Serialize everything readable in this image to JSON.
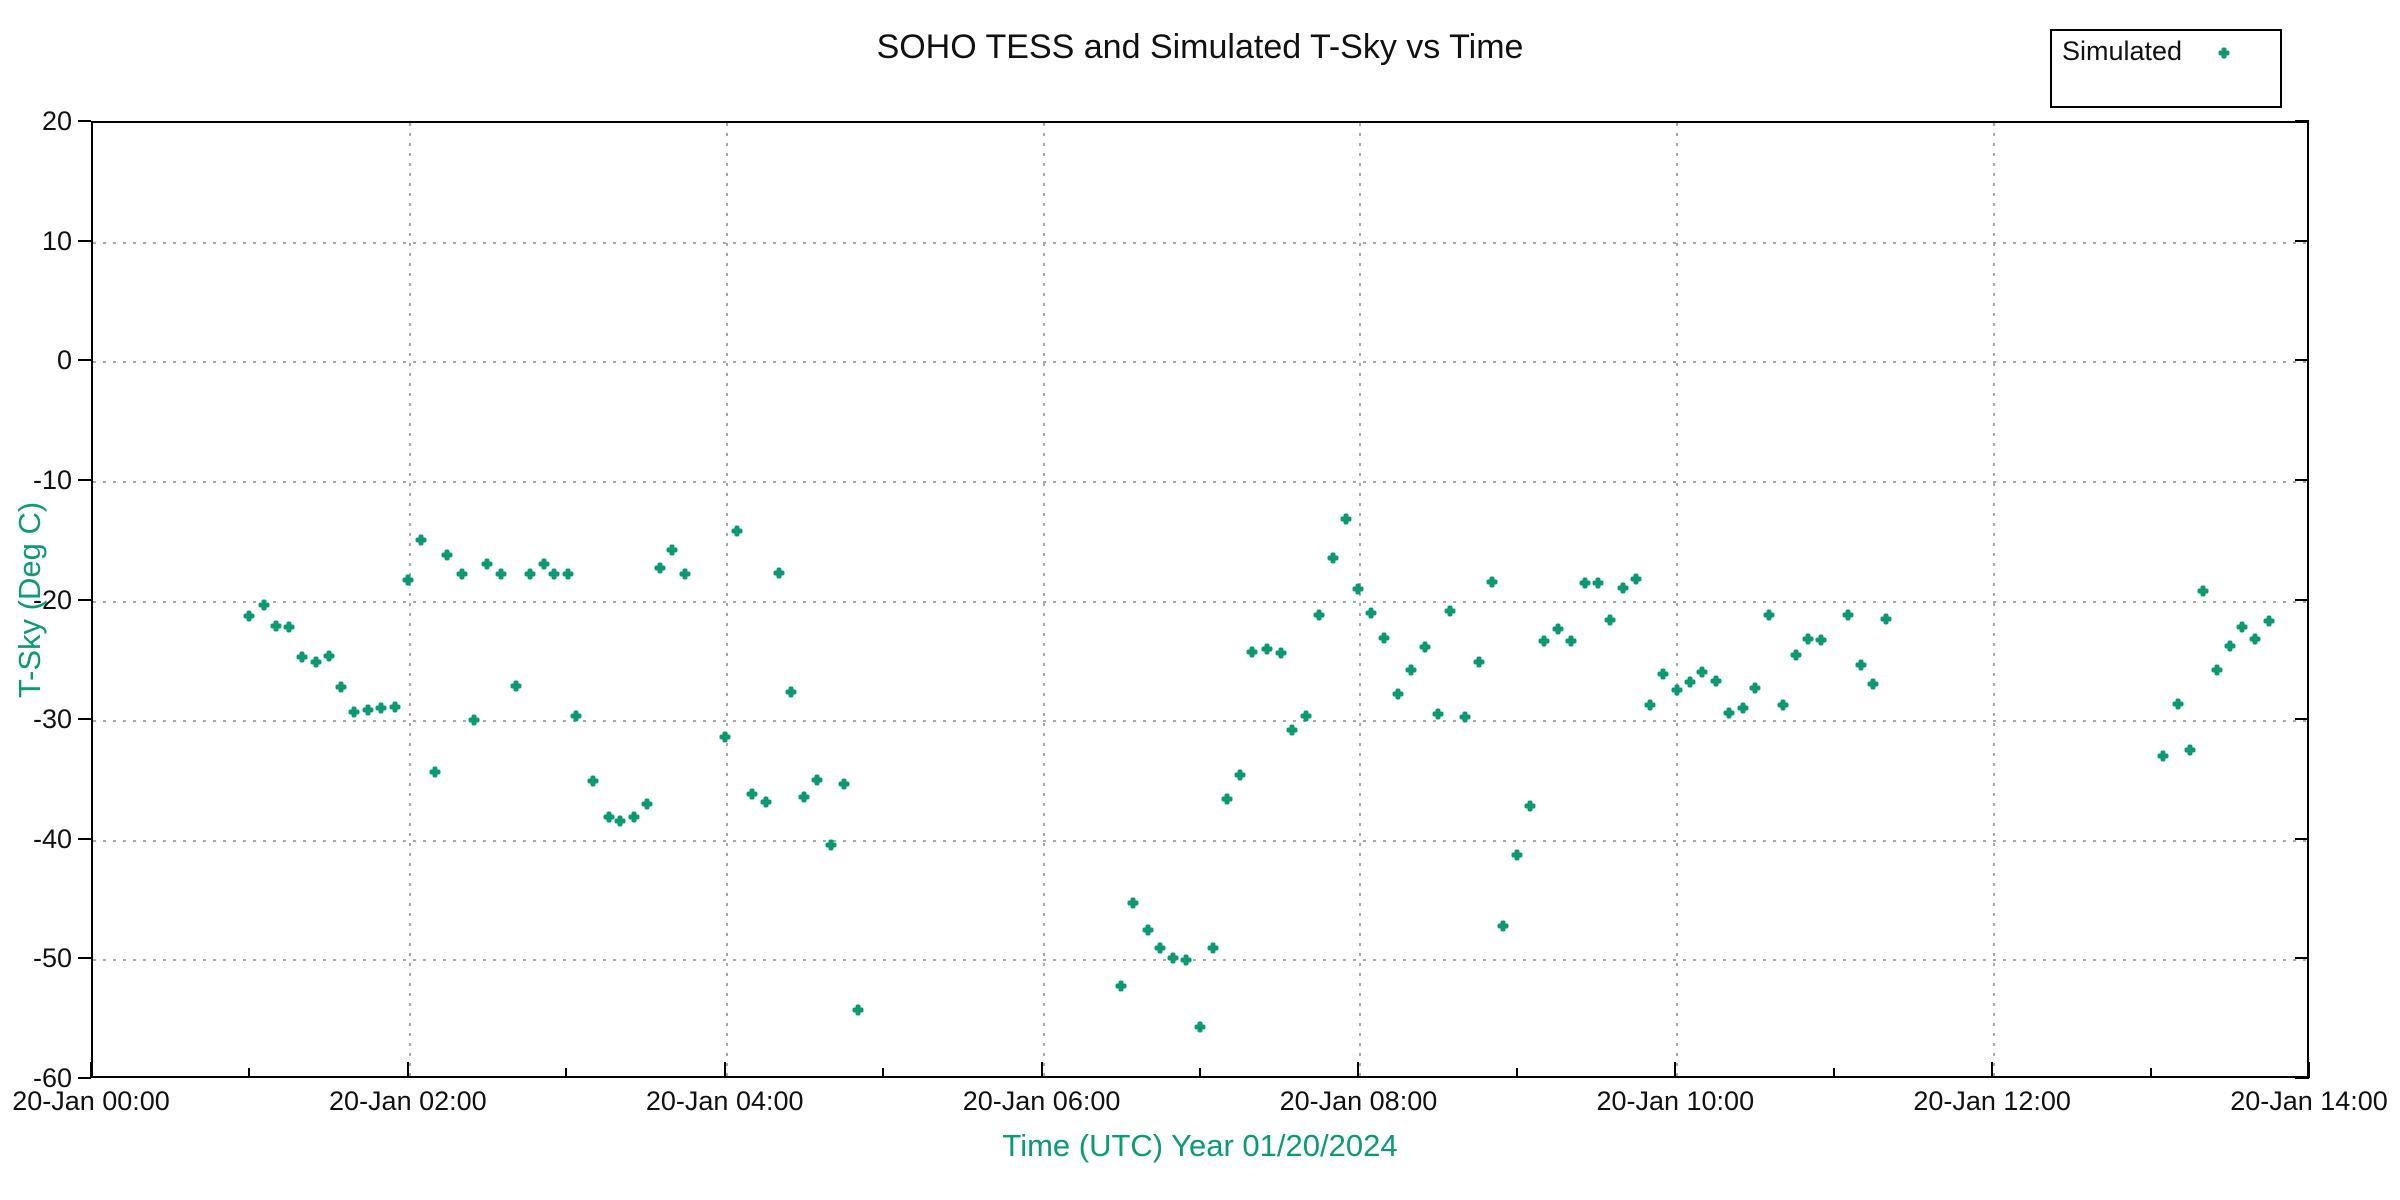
{
  "title": "SOHO TESS and Simulated T-Sky vs Time",
  "legend": {
    "label": "Simulated"
  },
  "colors": {
    "accent": "#0a9a74",
    "marker": "#0a9a71",
    "grid": "#a8a8a8",
    "axis": "#000000"
  },
  "chart_data": {
    "type": "scatter",
    "title": "SOHO TESS and Simulated T-Sky vs Time",
    "xlabel": "Time (UTC)  Year 01/20/2024",
    "ylabel": "T-Sky (Deg C)",
    "date": "01/20/2024",
    "xlim_hours": [
      0,
      14
    ],
    "ylim": [
      -60,
      20
    ],
    "grid": true,
    "legend_position": "top-right",
    "y_ticks": [
      {
        "value": 20,
        "label": "20"
      },
      {
        "value": 10,
        "label": "10"
      },
      {
        "value": 0,
        "label": "0"
      },
      {
        "value": -10,
        "label": "-10"
      },
      {
        "value": -20,
        "label": "-20"
      },
      {
        "value": -30,
        "label": "-30"
      },
      {
        "value": -40,
        "label": "-40"
      },
      {
        "value": -50,
        "label": "-50"
      },
      {
        "value": -60,
        "label": "-60"
      }
    ],
    "x_ticks": [
      {
        "hours": 0,
        "label": "20-Jan 00:00"
      },
      {
        "hours": 2,
        "label": "20-Jan 02:00"
      },
      {
        "hours": 4,
        "label": "20-Jan 04:00"
      },
      {
        "hours": 6,
        "label": "20-Jan 06:00"
      },
      {
        "hours": 8,
        "label": "20-Jan 08:00"
      },
      {
        "hours": 10,
        "label": "20-Jan 10:00"
      },
      {
        "hours": 12,
        "label": "20-Jan 12:00"
      },
      {
        "hours": 14,
        "label": "20-Jan 14:00"
      }
    ],
    "x_minor_tick_hours": [
      1,
      3,
      5,
      7,
      9,
      11,
      13
    ],
    "series": [
      {
        "name": "Simulated",
        "points_format": [
          "hours_utc",
          "t_sky_deg_c"
        ],
        "points": [
          [
            1.0,
            -21.4
          ],
          [
            1.09,
            -20.5
          ],
          [
            1.17,
            -22.2
          ],
          [
            1.25,
            -22.3
          ],
          [
            1.33,
            -24.8
          ],
          [
            1.42,
            -25.2
          ],
          [
            1.5,
            -24.7
          ],
          [
            1.58,
            -27.3
          ],
          [
            1.66,
            -29.4
          ],
          [
            1.75,
            -29.2
          ],
          [
            1.83,
            -29.1
          ],
          [
            1.92,
            -29.0
          ],
          [
            2.0,
            -18.4
          ],
          [
            2.08,
            -15.0
          ],
          [
            2.17,
            -34.4
          ],
          [
            2.25,
            -16.3
          ],
          [
            2.34,
            -17.9
          ],
          [
            2.42,
            -30.1
          ],
          [
            2.5,
            -17.0
          ],
          [
            2.59,
            -17.9
          ],
          [
            2.68,
            -27.2
          ],
          [
            2.77,
            -17.9
          ],
          [
            2.86,
            -17.0
          ],
          [
            2.92,
            -17.9
          ],
          [
            3.01,
            -17.9
          ],
          [
            3.06,
            -29.7
          ],
          [
            3.17,
            -35.2
          ],
          [
            3.27,
            -38.2
          ],
          [
            3.34,
            -38.5
          ],
          [
            3.43,
            -38.2
          ],
          [
            3.51,
            -37.1
          ],
          [
            3.59,
            -17.4
          ],
          [
            3.67,
            -15.9
          ],
          [
            3.75,
            -17.9
          ],
          [
            4.0,
            -31.5
          ],
          [
            4.08,
            -14.3
          ],
          [
            4.17,
            -36.3
          ],
          [
            4.26,
            -36.9
          ],
          [
            4.34,
            -17.8
          ],
          [
            4.42,
            -27.7
          ],
          [
            4.5,
            -36.5
          ],
          [
            4.58,
            -35.1
          ],
          [
            4.67,
            -40.5
          ],
          [
            4.75,
            -35.4
          ],
          [
            4.84,
            -54.3
          ],
          [
            6.5,
            -52.3
          ],
          [
            6.58,
            -45.4
          ],
          [
            6.67,
            -47.6
          ],
          [
            6.75,
            -49.1
          ],
          [
            6.83,
            -50.0
          ],
          [
            6.91,
            -50.1
          ],
          [
            7.0,
            -55.7
          ],
          [
            7.08,
            -49.1
          ],
          [
            7.17,
            -36.7
          ],
          [
            7.25,
            -34.7
          ],
          [
            7.33,
            -24.4
          ],
          [
            7.42,
            -24.1
          ],
          [
            7.51,
            -24.5
          ],
          [
            7.58,
            -30.9
          ],
          [
            7.67,
            -29.7
          ],
          [
            7.75,
            -21.3
          ],
          [
            7.84,
            -16.5
          ],
          [
            7.92,
            -13.3
          ],
          [
            8.0,
            -19.1
          ],
          [
            8.08,
            -21.1
          ],
          [
            8.16,
            -23.2
          ],
          [
            8.25,
            -27.9
          ],
          [
            8.33,
            -25.9
          ],
          [
            8.42,
            -24.0
          ],
          [
            8.5,
            -29.6
          ],
          [
            8.58,
            -21.0
          ],
          [
            8.67,
            -29.8
          ],
          [
            8.76,
            -25.2
          ],
          [
            8.84,
            -18.5
          ],
          [
            8.91,
            -47.3
          ],
          [
            9.0,
            -41.4
          ],
          [
            9.08,
            -37.3
          ],
          [
            9.17,
            -23.5
          ],
          [
            9.26,
            -22.5
          ],
          [
            9.34,
            -23.5
          ],
          [
            9.43,
            -18.6
          ],
          [
            9.51,
            -18.6
          ],
          [
            9.59,
            -21.7
          ],
          [
            9.67,
            -19.0
          ],
          [
            9.75,
            -18.3
          ],
          [
            9.84,
            -28.8
          ],
          [
            9.92,
            -26.2
          ],
          [
            10.01,
            -27.6
          ],
          [
            10.09,
            -26.9
          ],
          [
            10.17,
            -26.1
          ],
          [
            10.26,
            -26.8
          ],
          [
            10.34,
            -29.5
          ],
          [
            10.43,
            -29.1
          ],
          [
            10.5,
            -27.4
          ],
          [
            10.59,
            -21.3
          ],
          [
            10.68,
            -28.8
          ],
          [
            10.76,
            -24.6
          ],
          [
            10.84,
            -23.3
          ],
          [
            10.92,
            -23.4
          ],
          [
            11.09,
            -21.3
          ],
          [
            11.17,
            -25.5
          ],
          [
            11.25,
            -27.1
          ],
          [
            11.33,
            -21.6
          ],
          [
            13.08,
            -33.1
          ],
          [
            13.17,
            -28.7
          ],
          [
            13.25,
            -32.6
          ],
          [
            13.33,
            -19.3
          ],
          [
            13.42,
            -25.9
          ],
          [
            13.5,
            -23.9
          ],
          [
            13.58,
            -22.3
          ],
          [
            13.66,
            -23.3
          ],
          [
            13.75,
            -21.8
          ]
        ]
      }
    ]
  }
}
